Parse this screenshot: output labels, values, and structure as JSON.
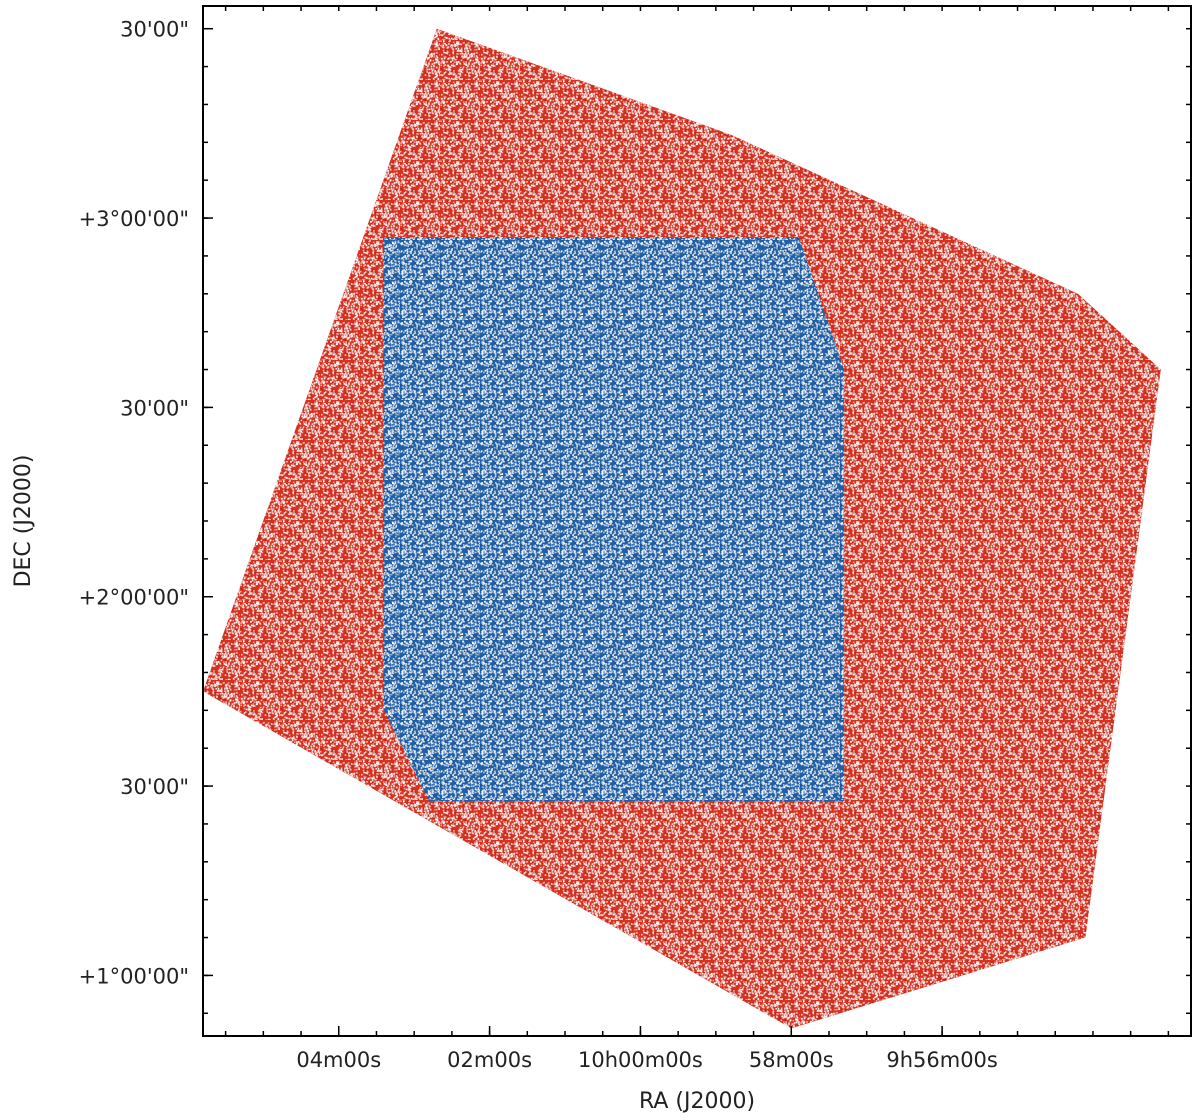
{
  "chart_data": {
    "type": "scatter",
    "xlabel": "RA (J2000)",
    "ylabel": "DEC (J2000)",
    "x_axis_reversed": true,
    "x_unit": "minutes of RA offset from 10h00m00s",
    "y_unit": "degrees Dec",
    "xlim": [
      5.8,
      -7.3
    ],
    "ylim": [
      0.84,
      3.56
    ],
    "x_ticks": [
      {
        "value": 4,
        "label": "04m00s"
      },
      {
        "value": 2,
        "label": "02m00s"
      },
      {
        "value": 0,
        "label": "10h00m00s"
      },
      {
        "value": -2,
        "label": "58m00s"
      },
      {
        "value": -4,
        "label": "9h56m00s"
      }
    ],
    "y_ticks": [
      {
        "value": 1.0,
        "label": "+1°00'00\""
      },
      {
        "value": 1.5,
        "label": "30'00\""
      },
      {
        "value": 2.0,
        "label": "+2°00'00\""
      },
      {
        "value": 2.5,
        "label": "30'00\""
      },
      {
        "value": 3.0,
        "label": "+3°00'00\""
      },
      {
        "value": 3.5,
        "label": "30'00\""
      }
    ],
    "grid": false,
    "series": [
      {
        "color": "#d7301f",
        "polygon": [
          [
            2.7,
            3.5
          ],
          [
            -1.2,
            3.22
          ],
          [
            -5.8,
            2.8
          ],
          [
            -6.9,
            2.6
          ],
          [
            -5.9,
            1.1
          ],
          [
            -2.0,
            0.86
          ],
          [
            5.8,
            1.75
          ],
          [
            2.7,
            3.5
          ]
        ]
      },
      {
        "color": "#1f5fa8",
        "polygon": [
          [
            3.4,
            2.95
          ],
          [
            -2.1,
            2.95
          ],
          [
            -2.7,
            2.6
          ],
          [
            -2.7,
            1.46
          ],
          [
            2.8,
            1.46
          ],
          [
            3.4,
            1.7
          ],
          [
            3.4,
            2.95
          ]
        ]
      }
    ]
  },
  "colors": {
    "outer_field": "#d7301f",
    "inner_field": "#1f5fa8",
    "background": "#ffffff"
  }
}
